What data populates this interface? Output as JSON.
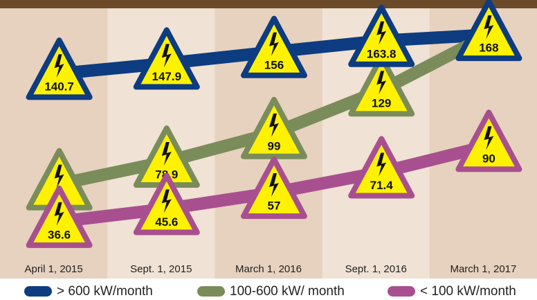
{
  "chart_data": {
    "type": "line",
    "categories": [
      "April 1, 2015",
      "Sept. 1, 2015",
      "March 1, 2016",
      "Sept. 1, 2016",
      "March 1, 2017"
    ],
    "series": [
      {
        "name": "> 600 kW/month",
        "color": "#0d3c80",
        "values": [
          140.7,
          147.9,
          156,
          163.8,
          168
        ]
      },
      {
        "name": "100-600 kW/ month",
        "color": "#7a8c5a",
        "values": [
          63,
          78.9,
          99,
          129,
          168
        ]
      },
      {
        "name": "< 100 kW/month",
        "color": "#a8508f",
        "values": [
          36.6,
          45.6,
          57,
          71.4,
          90
        ]
      }
    ],
    "ylim": [
      0,
      190
    ]
  }
}
